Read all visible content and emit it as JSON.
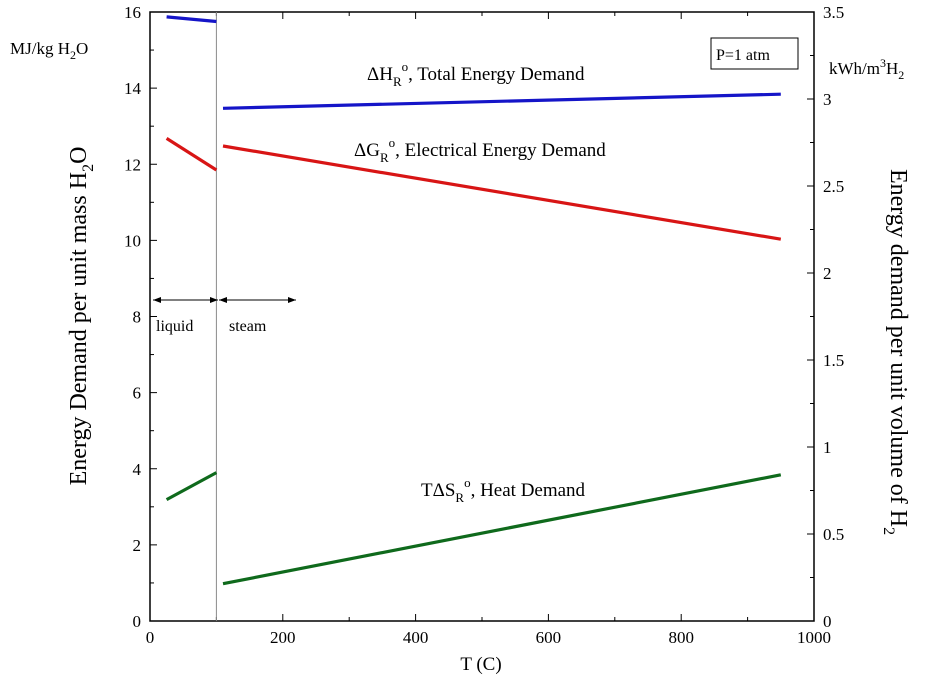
{
  "chart_data": {
    "type": "line",
    "x_axis": {
      "label": "T (C)",
      "range": [
        0,
        1000
      ],
      "ticks": [
        "0",
        "200",
        "400",
        "600",
        "800",
        "1000"
      ]
    },
    "y_left": {
      "label_main": "Energy Demand per unit mass H",
      "label_sub": "2",
      "label_end": "O",
      "unit_main": "MJ/kg H",
      "unit_sub": "2",
      "unit_end": "O",
      "range": [
        0,
        16
      ],
      "ticks": [
        "0",
        "2",
        "4",
        "6",
        "8",
        "10",
        "12",
        "14",
        "16"
      ]
    },
    "y_right": {
      "label_main": "Energy demand per unit volume of H",
      "label_sub": "2",
      "unit_main": "kWh/m",
      "unit_sup": "3",
      "unit_mid": "H",
      "unit_sub": "2",
      "range": [
        0,
        3.5
      ],
      "ticks": [
        "0",
        "0.5",
        "1",
        "1.5",
        "2",
        "2.5",
        "3",
        "3.5"
      ]
    },
    "phase_boundary_T": 100,
    "phase_labels": {
      "liquid": "liquid",
      "steam": "steam"
    },
    "pressure_label": "P=1 atm",
    "series": [
      {
        "key": "total",
        "color": "#1515c8",
        "label_pre": "ΔH",
        "label_sub": "R",
        "label_sup": "o",
        "label_post": ", Total Energy Demand",
        "segments": [
          {
            "x": [
              25,
              100
            ],
            "y": [
              15.87,
              15.75
            ]
          },
          {
            "x": [
              110,
              950
            ],
            "y": [
              13.47,
              13.84
            ]
          }
        ]
      },
      {
        "key": "electrical",
        "color": "#d81515",
        "label_pre": "ΔG",
        "label_sub": "R",
        "label_sup": "o",
        "label_post": ", Electrical Energy Demand",
        "segments": [
          {
            "x": [
              25,
              100
            ],
            "y": [
              12.68,
              11.85
            ]
          },
          {
            "x": [
              110,
              950
            ],
            "y": [
              12.48,
              10.03
            ]
          }
        ]
      },
      {
        "key": "heat",
        "color": "#0f6a1c",
        "label_pre": "TΔS",
        "label_sub": "R",
        "label_sup": "o",
        "label_post": ", Heat Demand",
        "segments": [
          {
            "x": [
              25,
              100
            ],
            "y": [
              3.19,
              3.9
            ]
          },
          {
            "x": [
              110,
              950
            ],
            "y": [
              0.98,
              3.84
            ]
          }
        ]
      }
    ]
  }
}
